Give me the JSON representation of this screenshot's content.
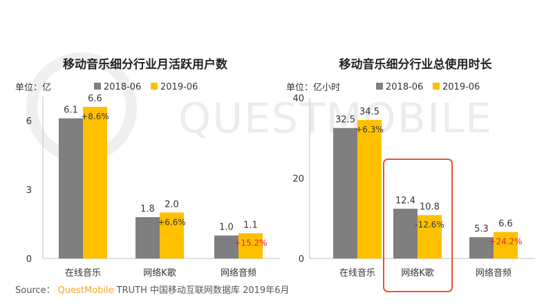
{
  "watermark": "QUESTMOBILE",
  "colors": {
    "s2018": "#7f7f7f",
    "s2019": "#ffc000",
    "highlight": "#e8552b",
    "red_pct": "#e8212b",
    "axis": "#bfbfbf"
  },
  "legend": {
    "s2018": "2018-06",
    "s2019": "2019-06"
  },
  "source": {
    "prefix": "Source：",
    "brand": "QuestMobile",
    "suffix": "TRUTH 中国移动互联网数据库 2019年6月"
  },
  "chart_data": [
    {
      "type": "bar",
      "title": "移动音乐细分行业月活跃用户数",
      "unit": "单位：亿",
      "categories": [
        "在线音乐",
        "网络K歌",
        "网络音频"
      ],
      "series": [
        {
          "name": "2018-06",
          "values": [
            6.1,
            1.8,
            1.0
          ]
        },
        {
          "name": "2019-06",
          "values": [
            6.6,
            2.0,
            1.1
          ]
        }
      ],
      "value_labels": {
        "2018-06": [
          "6.1",
          "1.8",
          "1.0"
        ],
        "2019-06": [
          "6.6",
          "2.0",
          "1.1"
        ]
      },
      "growth": [
        "+8.6%",
        "+6.6%",
        "+15.2%"
      ],
      "growth_red": [
        false,
        false,
        true
      ],
      "ylim": [
        0,
        9
      ],
      "yticks": [
        0,
        3,
        6
      ],
      "highlight_category": null
    },
    {
      "type": "bar",
      "title": "移动音乐细分行业总使用时长",
      "unit": "单位：亿小时",
      "categories": [
        "在线音乐",
        "网络K歌",
        "网络音频"
      ],
      "series": [
        {
          "name": "2018-06",
          "values": [
            32.5,
            12.4,
            5.3
          ]
        },
        {
          "name": "2019-06",
          "values": [
            34.5,
            10.8,
            6.6
          ]
        }
      ],
      "value_labels": {
        "2018-06": [
          "32.5",
          "12.4",
          "5.3"
        ],
        "2019-06": [
          "34.5",
          "10.8",
          "6.6"
        ]
      },
      "growth": [
        "+6.3%",
        "-12.6%",
        "+24.2%"
      ],
      "growth_red": [
        false,
        false,
        true
      ],
      "ylim": [
        0,
        40
      ],
      "yticks": [
        0,
        20,
        40
      ],
      "highlight_category": 1
    }
  ]
}
